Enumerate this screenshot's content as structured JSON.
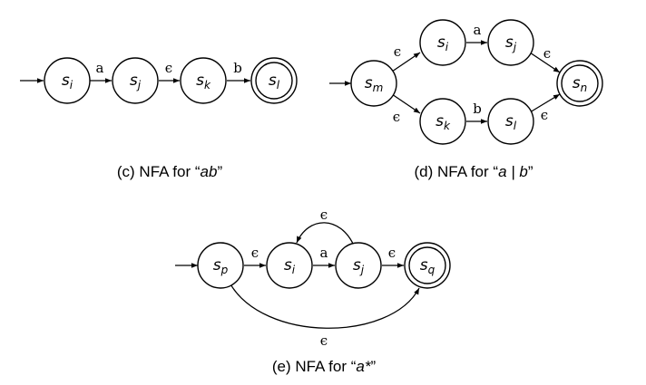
{
  "panels": {
    "c": {
      "caption_prefix": "(c) NFA for “",
      "caption_expr": "ab",
      "caption_suffix": "”",
      "states": [
        {
          "base": "s",
          "sub": "i",
          "accepting": false
        },
        {
          "base": "s",
          "sub": "j",
          "accepting": false
        },
        {
          "base": "s",
          "sub": "k",
          "accepting": false
        },
        {
          "base": "s",
          "sub": "l",
          "accepting": true
        }
      ],
      "edges": [
        "a",
        "ϵ",
        "b"
      ]
    },
    "d": {
      "caption_prefix": "(d) NFA for “",
      "caption_expr": "a | b",
      "caption_suffix": "”",
      "states": [
        {
          "base": "s",
          "sub": "m",
          "accepting": false
        },
        {
          "base": "s",
          "sub": "i",
          "accepting": false
        },
        {
          "base": "s",
          "sub": "j",
          "accepting": false
        },
        {
          "base": "s",
          "sub": "k",
          "accepting": false
        },
        {
          "base": "s",
          "sub": "l",
          "accepting": false
        },
        {
          "base": "s",
          "sub": "n",
          "accepting": true
        }
      ],
      "edges": [
        "ϵ",
        "a",
        "ϵ",
        "ϵ",
        "b",
        "ϵ"
      ]
    },
    "e": {
      "caption_prefix": "(e) NFA for “",
      "caption_expr": "a*",
      "caption_suffix": "”",
      "states": [
        {
          "base": "s",
          "sub": "p",
          "accepting": false
        },
        {
          "base": "s",
          "sub": "i",
          "accepting": false
        },
        {
          "base": "s",
          "sub": "j",
          "accepting": false
        },
        {
          "base": "s",
          "sub": "q",
          "accepting": true
        }
      ],
      "edges": [
        "ϵ",
        "a",
        "ϵ",
        "ϵ",
        "ϵ"
      ]
    }
  }
}
